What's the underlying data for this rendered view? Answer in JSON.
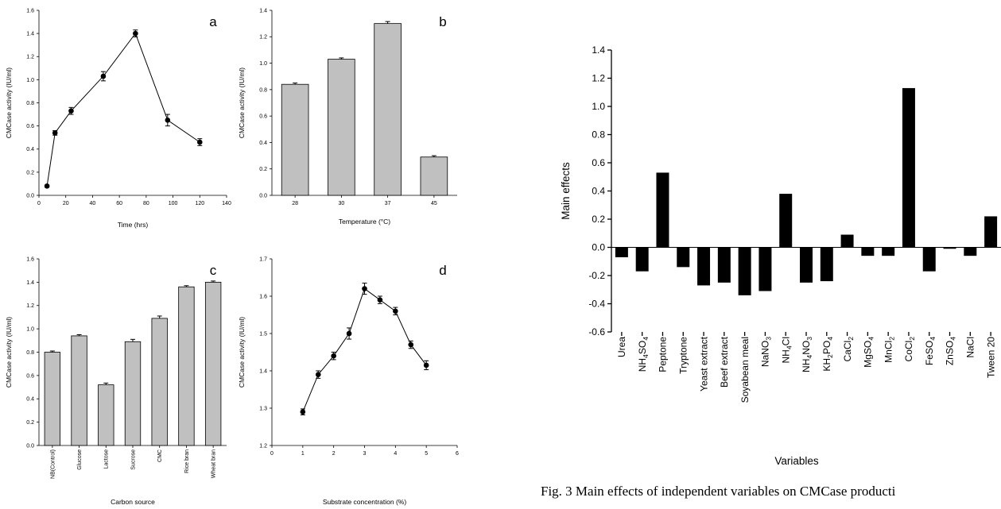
{
  "caption": "Fig. 3 Main effects of independent variables on CMCase producti",
  "chart_data": [
    {
      "panel_label": "a",
      "type": "line",
      "xlabel": "Time (hrs)",
      "ylabel": "CMCase activity (IU/ml)",
      "xlim": [
        0,
        140
      ],
      "xticks": [
        0,
        20,
        40,
        60,
        80,
        100,
        120,
        140
      ],
      "ylim": [
        0,
        1.6
      ],
      "yticks": [
        0.0,
        0.2,
        0.4,
        0.6,
        0.8,
        1.0,
        1.2,
        1.4,
        1.6
      ],
      "x": [
        6,
        12,
        24,
        48,
        72,
        96,
        120
      ],
      "values": [
        0.08,
        0.54,
        0.73,
        1.03,
        1.4,
        0.65,
        0.46
      ],
      "errors": [
        0.01,
        0.02,
        0.03,
        0.04,
        0.03,
        0.05,
        0.03
      ]
    },
    {
      "panel_label": "b",
      "type": "bar",
      "xlabel": "Temperature (°C)",
      "ylabel": "CMCase activity (IU/ml)",
      "categories": [
        "28",
        "30",
        "37",
        "45"
      ],
      "values": [
        0.84,
        1.03,
        1.3,
        0.29
      ],
      "errors": [
        0.01,
        0.01,
        0.015,
        0.01
      ],
      "ylim": [
        0,
        1.4
      ],
      "yticks": [
        0.0,
        0.2,
        0.4,
        0.6,
        0.8,
        1.0,
        1.2,
        1.4
      ]
    },
    {
      "panel_label": "c",
      "type": "bar",
      "xlabel": "Carbon source",
      "ylabel": "CMCase activity (IU/ml)",
      "categories": [
        "NB(Control)",
        "Glucose",
        "Lactose",
        "Sucrose",
        "CMC",
        "Rice bran",
        "Wheat bran"
      ],
      "values": [
        0.8,
        0.94,
        0.52,
        0.89,
        1.09,
        1.36,
        1.4
      ],
      "errors": [
        0.01,
        0.01,
        0.015,
        0.02,
        0.02,
        0.01,
        0.01
      ],
      "ylim": [
        0,
        1.6
      ],
      "yticks": [
        0.0,
        0.2,
        0.4,
        0.6,
        0.8,
        1.0,
        1.2,
        1.4,
        1.6
      ]
    },
    {
      "panel_label": "d",
      "type": "line",
      "xlabel": "Substrate concentration (%)",
      "ylabel": "CMCase activity (IU/ml)",
      "xlim": [
        0,
        6
      ],
      "xticks": [
        0,
        1,
        2,
        3,
        4,
        5,
        6
      ],
      "ylim": [
        1.2,
        1.7
      ],
      "yticks": [
        1.2,
        1.3,
        1.4,
        1.5,
        1.6,
        1.7
      ],
      "x": [
        1.0,
        1.5,
        2.0,
        2.5,
        3.0,
        3.5,
        4.0,
        4.5,
        5.0
      ],
      "values": [
        1.29,
        1.39,
        1.44,
        1.5,
        1.62,
        1.59,
        1.56,
        1.47,
        1.415
      ],
      "errors": [
        0.008,
        0.01,
        0.01,
        0.015,
        0.015,
        0.01,
        0.01,
        0.01,
        0.012
      ]
    },
    {
      "panel_label": "",
      "type": "bar",
      "xlabel": "Variables",
      "ylabel": "Main effects",
      "categories": [
        "Urea",
        "NH4SO4",
        "Peptone",
        "Tryptone",
        "Yeast extract",
        "Beef extract",
        "Soyabean meal",
        "NaNO3",
        "NH4Cl",
        "NH4NO3",
        "KH2PO4",
        "CaCl2",
        "MgSO4",
        "MnCl2",
        "CoCl2",
        "FeSO4",
        "ZnSO4",
        "NaCl",
        "Tween 20"
      ],
      "category_labels": [
        [
          [
            "Urea",
            false
          ]
        ],
        [
          [
            "NH",
            false
          ],
          [
            "4",
            true
          ],
          [
            "SO",
            false
          ],
          [
            "4",
            true
          ]
        ],
        [
          [
            "Peptone",
            false
          ]
        ],
        [
          [
            "Tryptone",
            false
          ]
        ],
        [
          [
            "Yeast extract",
            false
          ]
        ],
        [
          [
            "Beef extract",
            false
          ]
        ],
        [
          [
            "Soyabean meal",
            false
          ]
        ],
        [
          [
            "NaNO",
            false
          ],
          [
            "3",
            true
          ]
        ],
        [
          [
            "NH",
            false
          ],
          [
            "4",
            true
          ],
          [
            "Cl",
            false
          ]
        ],
        [
          [
            "NH",
            false
          ],
          [
            "4",
            true
          ],
          [
            "NO",
            false
          ],
          [
            "3",
            true
          ]
        ],
        [
          [
            "KH",
            false
          ],
          [
            "2",
            true
          ],
          [
            "PO",
            false
          ],
          [
            "4",
            true
          ]
        ],
        [
          [
            "CaCl",
            false
          ],
          [
            "2",
            true
          ]
        ],
        [
          [
            "MgSO",
            false
          ],
          [
            "4",
            true
          ]
        ],
        [
          [
            "MnCl",
            false
          ],
          [
            "2",
            true
          ]
        ],
        [
          [
            "CoCl",
            false
          ],
          [
            "2",
            true
          ]
        ],
        [
          [
            "FeSO",
            false
          ],
          [
            "4",
            true
          ]
        ],
        [
          [
            "ZnSO",
            false
          ],
          [
            "4",
            true
          ]
        ],
        [
          [
            "NaCl",
            false
          ]
        ],
        [
          [
            "Tween 20",
            false
          ]
        ]
      ],
      "values": [
        -0.07,
        -0.17,
        0.53,
        -0.14,
        -0.27,
        -0.25,
        -0.34,
        -0.31,
        0.38,
        -0.25,
        -0.24,
        0.09,
        -0.06,
        -0.06,
        1.13,
        -0.17,
        -0.01,
        -0.06,
        0.22
      ],
      "ylim": [
        -0.6,
        1.4
      ],
      "yticks": [
        -0.6,
        -0.4,
        -0.2,
        0.0,
        0.2,
        0.4,
        0.6,
        0.8,
        1.0,
        1.2,
        1.4
      ],
      "bar_color": "#000000"
    }
  ],
  "colors": {
    "gray_bar": "#c0c0c0",
    "black": "#000000"
  }
}
